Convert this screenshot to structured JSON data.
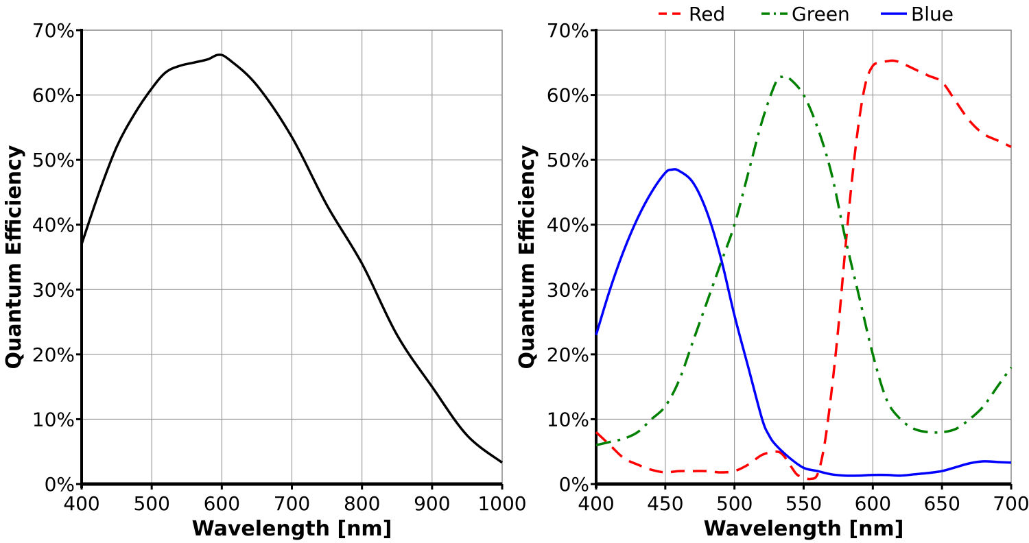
{
  "chart_data": [
    {
      "type": "line",
      "xlabel": "Wavelength [nm]",
      "ylabel": "Quantum Efficiency",
      "xlim": [
        400,
        1000
      ],
      "ylim": [
        0,
        70
      ],
      "xticks": [
        400,
        500,
        600,
        700,
        800,
        900,
        1000
      ],
      "yticks": [
        0,
        10,
        20,
        30,
        40,
        50,
        60,
        70
      ],
      "ytick_labels": [
        "0%",
        "10%",
        "20%",
        "30%",
        "40%",
        "50%",
        "60%",
        "70%"
      ],
      "grid": true,
      "legend": "none",
      "series": [
        {
          "color": "#000000",
          "dash": "solid",
          "x": [
            400,
            425,
            450,
            475,
            500,
            520,
            540,
            560,
            580,
            595,
            610,
            650,
            700,
            750,
            800,
            850,
            900,
            950,
            1000
          ],
          "y": [
            37,
            45,
            52,
            57,
            61,
            63.5,
            64.5,
            65,
            65.5,
            66.2,
            65.5,
            61.5,
            53.5,
            43,
            34,
            23,
            15,
            7.5,
            3.3
          ]
        }
      ]
    },
    {
      "type": "line",
      "xlabel": "Wavelength [nm]",
      "ylabel": "Quantum Efficiency",
      "xlim": [
        400,
        700
      ],
      "ylim": [
        0,
        70
      ],
      "xticks": [
        400,
        450,
        500,
        550,
        600,
        650,
        700
      ],
      "yticks": [
        0,
        10,
        20,
        30,
        40,
        50,
        60,
        70
      ],
      "ytick_labels": [
        "0%",
        "10%",
        "20%",
        "30%",
        "40%",
        "50%",
        "60%",
        "70%"
      ],
      "grid": true,
      "legend": "top",
      "series": [
        {
          "name": "Red",
          "color": "#ff0000",
          "dash": "dashed",
          "x": [
            400,
            410,
            420,
            430,
            440,
            450,
            460,
            470,
            480,
            490,
            500,
            510,
            520,
            530,
            535,
            540,
            545,
            550,
            555,
            560,
            565,
            570,
            575,
            580,
            585,
            590,
            595,
            600,
            605,
            610,
            615,
            620,
            630,
            640,
            650,
            660,
            670,
            680,
            690,
            700
          ],
          "y": [
            8,
            6,
            4,
            3,
            2.2,
            1.8,
            2,
            2,
            2,
            1.8,
            2,
            3,
            4.5,
            5,
            4.5,
            3,
            1.5,
            1,
            0.8,
            1.5,
            6,
            14,
            24,
            36,
            47,
            56,
            62,
            64.5,
            65,
            65.2,
            65.3,
            65,
            64,
            63,
            62,
            59,
            56,
            54,
            53,
            52
          ]
        },
        {
          "name": "Green",
          "color": "#008000",
          "dash": "dashdot",
          "x": [
            400,
            410,
            420,
            430,
            440,
            450,
            460,
            470,
            480,
            490,
            500,
            510,
            520,
            530,
            535,
            540,
            550,
            560,
            570,
            580,
            590,
            600,
            610,
            620,
            630,
            640,
            650,
            660,
            670,
            680,
            690,
            700
          ],
          "y": [
            6,
            6.5,
            7,
            8,
            10,
            12,
            16,
            22,
            28,
            34,
            40,
            48,
            56,
            62,
            62.8,
            62.5,
            60,
            55,
            48,
            38,
            29,
            20,
            13,
            10,
            8.5,
            8,
            8,
            8.5,
            10,
            12,
            15,
            18
          ]
        },
        {
          "name": "Blue",
          "color": "#0000ff",
          "dash": "solid",
          "x": [
            400,
            410,
            420,
            430,
            440,
            450,
            455,
            460,
            470,
            480,
            490,
            500,
            510,
            520,
            525,
            530,
            540,
            550,
            560,
            570,
            580,
            590,
            600,
            610,
            620,
            630,
            640,
            650,
            660,
            670,
            680,
            690,
            700
          ],
          "y": [
            23,
            30,
            36,
            41,
            45,
            48,
            48.5,
            48.3,
            46.5,
            42,
            35,
            26,
            18,
            10,
            7.5,
            6,
            4,
            2.5,
            2,
            1.5,
            1.3,
            1.3,
            1.4,
            1.4,
            1.3,
            1.5,
            1.7,
            2,
            2.6,
            3.2,
            3.5,
            3.4,
            3.3
          ]
        }
      ]
    }
  ]
}
